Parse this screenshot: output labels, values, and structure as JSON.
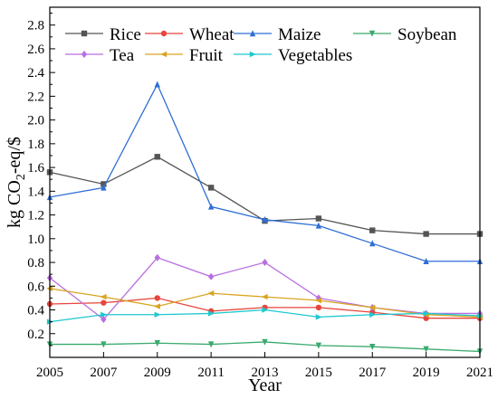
{
  "chart_data": {
    "type": "line",
    "title": "",
    "xlabel": "Year",
    "ylabel": "kg CO2-eq/$",
    "ylabel_base": "kg CO",
    "ylabel_sub": "2",
    "ylabel_rest": "-eq/$",
    "x": [
      2005,
      2007,
      2009,
      2011,
      2013,
      2015,
      2017,
      2019,
      2021
    ],
    "xlim": [
      2005,
      2021
    ],
    "ylim": [
      0,
      2.95
    ],
    "yticks": [
      0.2,
      0.4,
      0.6,
      0.8,
      1.0,
      1.2,
      1.4,
      1.6,
      1.8,
      2.0,
      2.2,
      2.4,
      2.6,
      2.8
    ],
    "ytick_labels": [
      "0.2",
      "0.4",
      "0.6",
      "0.8",
      "1.0",
      "1.2",
      "1.4",
      "1.6",
      "1.8",
      "2.0",
      "2.2",
      "2.4",
      "2.6",
      "2.8"
    ],
    "xtick_labels": [
      "2005",
      "2007",
      "2009",
      "2011",
      "2013",
      "2015",
      "2017",
      "2019",
      "2021"
    ],
    "grid": false,
    "legend_position": "top",
    "series": [
      {
        "name": "Rice",
        "color": "#555555",
        "marker": "square",
        "values": [
          1.56,
          1.46,
          1.69,
          1.43,
          1.15,
          1.17,
          1.07,
          1.04,
          1.04
        ]
      },
      {
        "name": "Wheat",
        "color": "#e8453c",
        "marker": "circle",
        "values": [
          0.45,
          0.46,
          0.5,
          0.39,
          0.42,
          0.42,
          0.38,
          0.33,
          0.33
        ]
      },
      {
        "name": "Maize",
        "color": "#2f6fd6",
        "marker": "triangle",
        "values": [
          1.35,
          1.43,
          2.3,
          1.27,
          1.16,
          1.11,
          0.96,
          0.81,
          0.81
        ]
      },
      {
        "name": "Soybean",
        "color": "#3aaa6e",
        "marker": "triangle-down",
        "values": [
          0.11,
          0.11,
          0.12,
          0.11,
          0.13,
          0.1,
          0.09,
          0.07,
          0.05
        ]
      },
      {
        "name": "Tea",
        "color": "#b86fe0",
        "marker": "diamond",
        "values": [
          0.67,
          0.32,
          0.84,
          0.68,
          0.8,
          0.5,
          0.42,
          0.37,
          0.37
        ]
      },
      {
        "name": "Fruit",
        "color": "#d9a520",
        "marker": "triangle-left",
        "values": [
          0.58,
          0.51,
          0.43,
          0.54,
          0.51,
          0.48,
          0.42,
          0.36,
          0.34
        ]
      },
      {
        "name": "Vegetables",
        "color": "#1ec8cf",
        "marker": "triangle-right",
        "values": [
          0.3,
          0.36,
          0.36,
          0.37,
          0.4,
          0.34,
          0.36,
          0.37,
          0.35
        ]
      }
    ]
  }
}
